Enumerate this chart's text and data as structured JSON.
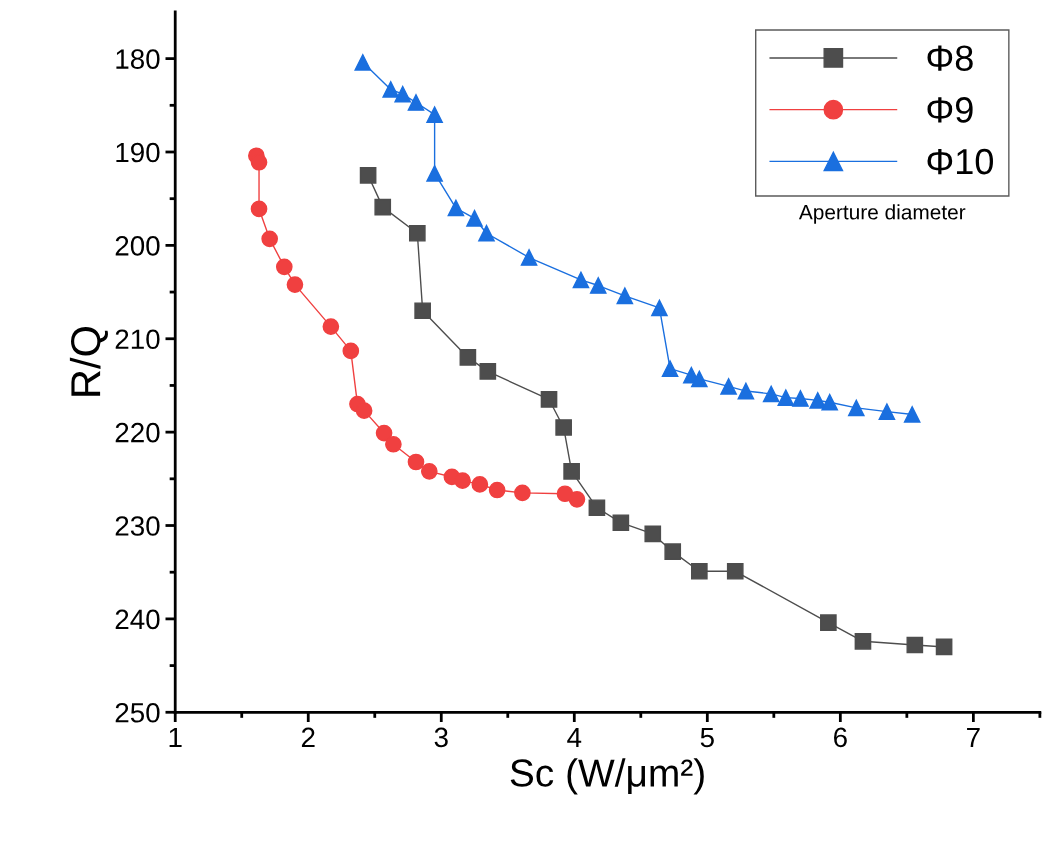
{
  "chart_data": {
    "type": "line",
    "xlabel": "Sc (W/μm²)",
    "ylabel": "R/Q",
    "legend_title": "Aperture diameter",
    "legend": "top right",
    "line_style": "solid",
    "grid": false,
    "xlim": [
      1,
      7.5
    ],
    "ylim": [
      250,
      175
    ],
    "xticks": [
      1,
      {
        "value": 1.5,
        "label": null
      },
      2,
      {
        "value": 2.5,
        "label": null
      },
      3,
      {
        "value": 3.5,
        "label": null
      },
      4,
      {
        "value": 4.5,
        "label": null
      },
      5,
      {
        "value": 5.5,
        "label": null
      },
      6,
      {
        "value": 6.5,
        "label": null
      },
      7,
      {
        "value": 7.5,
        "label": null
      }
    ],
    "yticks": [
      180,
      {
        "value": 185,
        "label": null
      },
      190,
      {
        "value": 195,
        "label": null
      },
      200,
      {
        "value": 205,
        "label": null
      },
      210,
      {
        "value": 215,
        "label": null
      },
      220,
      {
        "value": 225,
        "label": null
      },
      230,
      {
        "value": 235,
        "label": null
      },
      240,
      {
        "value": 245,
        "label": null
      },
      250
    ],
    "series": [
      {
        "name": "Φ8",
        "color": "#4d4d4d",
        "marker": "square",
        "x": [
          2.45,
          2.56,
          2.82,
          2.86,
          3.2,
          3.35,
          3.81,
          3.92,
          3.98,
          4.17,
          4.35,
          4.59,
          4.74,
          4.94,
          5.21,
          5.91,
          6.17,
          6.56,
          6.78
        ],
        "values": [
          192.5,
          195.9,
          198.7,
          207.0,
          212.0,
          213.5,
          216.5,
          219.5,
          224.2,
          228.1,
          229.7,
          230.9,
          232.8,
          234.9,
          234.9,
          240.4,
          242.4,
          242.8,
          243.0
        ]
      },
      {
        "name": "Φ9",
        "color": "#f04040",
        "marker": "circle",
        "x": [
          1.61,
          1.63,
          1.63,
          1.71,
          1.82,
          1.9,
          2.17,
          2.32,
          2.37,
          2.42,
          2.57,
          2.64,
          2.81,
          2.91,
          3.08,
          3.16,
          3.29,
          3.42,
          3.61,
          3.93,
          4.02
        ],
        "values": [
          190.4,
          191.1,
          196.1,
          199.3,
          202.3,
          204.2,
          208.7,
          211.3,
          217.0,
          217.7,
          220.1,
          221.3,
          223.2,
          224.2,
          224.8,
          225.2,
          225.6,
          226.2,
          226.5,
          226.6,
          227.2
        ]
      },
      {
        "name": "Φ10",
        "color": "#1a6fdf",
        "marker": "triangle",
        "x": [
          2.41,
          2.62,
          2.71,
          2.81,
          2.95,
          2.95,
          3.11,
          3.25,
          3.34,
          3.66,
          4.05,
          4.18,
          4.38,
          4.64,
          4.72,
          4.88,
          4.94,
          5.16,
          5.29,
          5.48,
          5.59,
          5.7,
          5.83,
          5.92,
          6.12,
          6.35,
          6.54
        ],
        "values": [
          180.4,
          183.3,
          183.8,
          184.7,
          186.0,
          192.3,
          196.0,
          197.1,
          198.7,
          201.3,
          203.7,
          204.3,
          205.4,
          206.7,
          213.2,
          213.9,
          214.3,
          215.1,
          215.6,
          215.9,
          216.3,
          216.4,
          216.6,
          216.8,
          217.4,
          217.8,
          218.1
        ]
      }
    ]
  }
}
